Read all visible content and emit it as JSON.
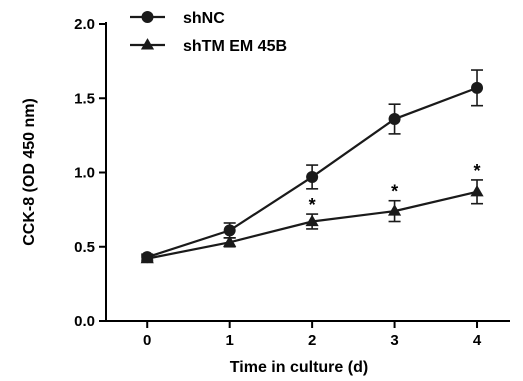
{
  "chart_data": {
    "type": "line",
    "title": "",
    "xlabel": "Time in culture (d)",
    "ylabel": "CCK-8 (OD 450 nm)",
    "x": [
      0,
      1,
      2,
      3,
      4
    ],
    "xticks": [
      "0",
      "1",
      "2",
      "3",
      "4"
    ],
    "xlim": [
      -0.5,
      4.4
    ],
    "ylim": [
      0,
      2.0
    ],
    "yticks": [
      "0.0",
      "0.5",
      "1.0",
      "1.5",
      "2.0"
    ],
    "grid": false,
    "legend_position": "top-left",
    "series": [
      {
        "name": "shNC",
        "marker": "circle",
        "color": "#1a1a1a",
        "values": [
          0.43,
          0.61,
          0.97,
          1.36,
          1.57
        ],
        "errors": [
          0.02,
          0.05,
          0.08,
          0.1,
          0.12
        ]
      },
      {
        "name": "shTM EM 45B",
        "marker": "triangle",
        "color": "#1a1a1a",
        "values": [
          0.42,
          0.53,
          0.67,
          0.74,
          0.87
        ],
        "errors": [
          0.02,
          0.03,
          0.05,
          0.07,
          0.08
        ],
        "significance": [
          "",
          "",
          "*",
          "*",
          "*"
        ]
      }
    ]
  }
}
